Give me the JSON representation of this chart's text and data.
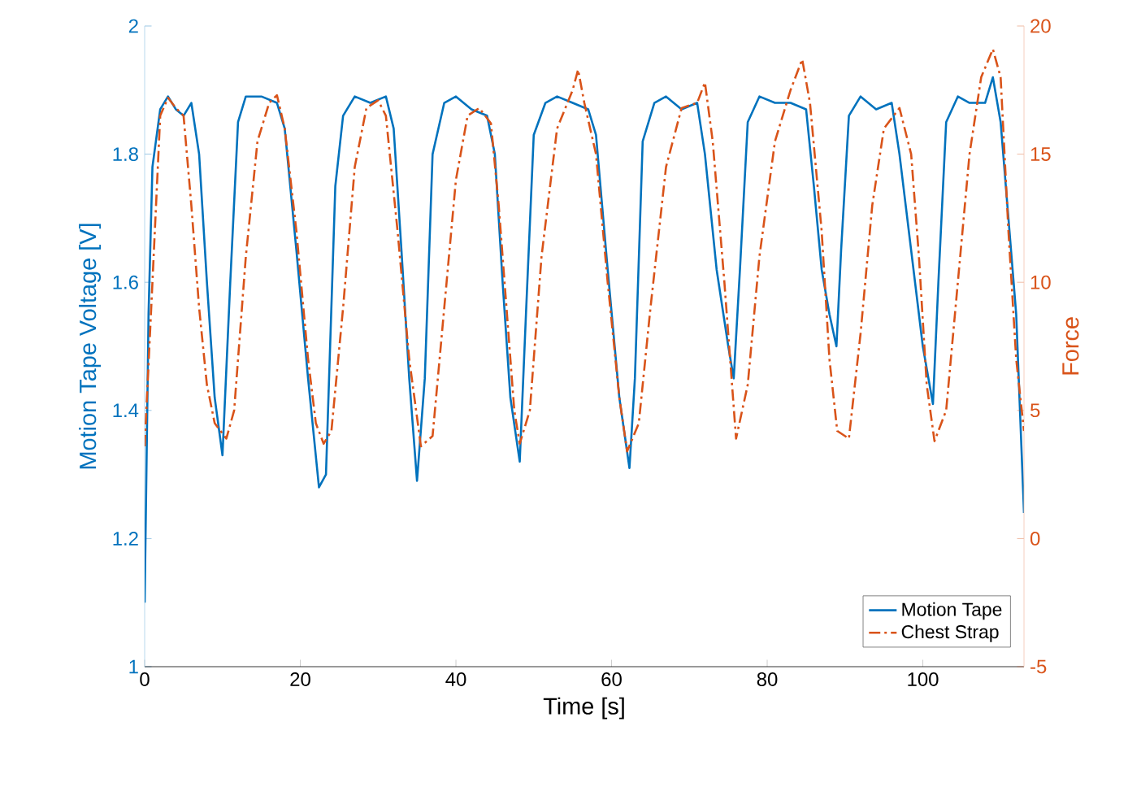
{
  "chart_data": {
    "type": "line",
    "xlabel": "Time [s]",
    "ylabel": "Motion Tape Voltage [V]",
    "y2label": "Force",
    "xlim": [
      0,
      113
    ],
    "xticks": [
      0,
      20,
      40,
      60,
      80,
      100
    ],
    "ylim": [
      1,
      2
    ],
    "yticks": [
      1,
      1.2,
      1.4,
      1.6,
      1.8,
      2
    ],
    "y2lim": [
      -5,
      20
    ],
    "y2ticks": [
      -5,
      0,
      5,
      10,
      15,
      20
    ],
    "grid": false,
    "legend": "bottom right",
    "marker": "none",
    "series": [
      {
        "name": "Motion Tape",
        "color": "#0072bd",
        "line_style": "solid",
        "x": [
          0,
          0.5,
          1,
          2,
          3,
          4,
          5,
          6,
          7,
          8,
          9,
          10,
          11,
          12,
          13,
          15,
          17,
          18,
          19.5,
          21,
          22.4,
          23.3,
          24.5,
          25.5,
          27,
          29,
          31,
          32,
          33,
          34,
          35,
          36,
          37,
          38.5,
          40,
          42,
          44,
          45,
          46,
          47,
          48.2,
          49,
          50,
          51.5,
          53,
          55,
          57,
          58,
          59.5,
          61,
          62.3,
          63,
          64,
          65.5,
          67,
          69,
          71,
          72,
          73.5,
          75,
          75.7,
          76.5,
          77.5,
          79,
          81,
          83,
          85,
          86,
          87,
          88,
          88.9,
          89.5,
          90.5,
          92,
          94,
          96,
          97,
          98.5,
          100,
          101.3,
          102,
          103,
          104.5,
          106,
          108,
          109,
          110,
          111,
          112,
          113
        ],
        "values": [
          1.1,
          1.55,
          1.78,
          1.87,
          1.89,
          1.87,
          1.86,
          1.88,
          1.8,
          1.6,
          1.42,
          1.33,
          1.6,
          1.85,
          1.89,
          1.89,
          1.88,
          1.84,
          1.65,
          1.45,
          1.28,
          1.3,
          1.75,
          1.86,
          1.89,
          1.88,
          1.89,
          1.84,
          1.65,
          1.45,
          1.29,
          1.45,
          1.8,
          1.88,
          1.89,
          1.87,
          1.86,
          1.8,
          1.6,
          1.42,
          1.32,
          1.55,
          1.83,
          1.88,
          1.89,
          1.88,
          1.87,
          1.83,
          1.62,
          1.42,
          1.31,
          1.45,
          1.82,
          1.88,
          1.89,
          1.87,
          1.88,
          1.8,
          1.62,
          1.5,
          1.45,
          1.62,
          1.85,
          1.89,
          1.88,
          1.88,
          1.87,
          1.75,
          1.62,
          1.55,
          1.5,
          1.65,
          1.86,
          1.89,
          1.87,
          1.88,
          1.8,
          1.65,
          1.5,
          1.41,
          1.6,
          1.85,
          1.89,
          1.88,
          1.88,
          1.92,
          1.85,
          1.7,
          1.55,
          1.24
        ]
      },
      {
        "name": "Chest Strap",
        "color": "#d95319",
        "line_style": "dashdot",
        "axis": "y2",
        "x": [
          0,
          1,
          2,
          3,
          4,
          5,
          6,
          7,
          8,
          9,
          10.5,
          11.5,
          13,
          14.5,
          16,
          17,
          18,
          19.5,
          21,
          22,
          23,
          24,
          25.5,
          27,
          28.5,
          30,
          31,
          32.5,
          34,
          35.5,
          37,
          38.5,
          40,
          41.5,
          43,
          44.5,
          45.5,
          46.5,
          47.5,
          48.2,
          49.5,
          51,
          53,
          55,
          55.7,
          56.5,
          58,
          59.5,
          61,
          62,
          63.5,
          65,
          67,
          69,
          71,
          72,
          73,
          74.5,
          76,
          77.5,
          79,
          81,
          83,
          84.5,
          85.5,
          87,
          88,
          89,
          90.5,
          92,
          93.5,
          95,
          97,
          98.5,
          99.5,
          100.5,
          101.5,
          103,
          104.5,
          106,
          107.5,
          109,
          110,
          111,
          112,
          113
        ],
        "values": [
          3.6,
          10,
          16.5,
          17.2,
          16.8,
          16.5,
          13,
          9,
          6,
          4.5,
          3.9,
          5,
          11,
          15.5,
          17,
          17.3,
          16,
          12,
          7,
          4.5,
          3.7,
          4.2,
          9,
          14.5,
          16.8,
          17.1,
          16.5,
          12,
          7,
          3.6,
          4,
          9,
          14,
          16.5,
          16.8,
          16.2,
          13,
          9,
          5,
          3.7,
          5,
          11,
          16,
          17.5,
          18.3,
          17,
          15,
          10,
          5.5,
          3.4,
          4.5,
          9,
          14.5,
          16.8,
          17,
          17.8,
          15.5,
          10,
          3.9,
          6,
          11,
          15.5,
          17.5,
          18.7,
          17,
          12,
          7,
          4.2,
          3.9,
          8,
          13,
          16,
          16.8,
          15,
          11,
          6,
          3.8,
          5,
          10,
          15,
          18,
          19.1,
          18,
          12,
          7,
          4.2
        ]
      }
    ]
  }
}
